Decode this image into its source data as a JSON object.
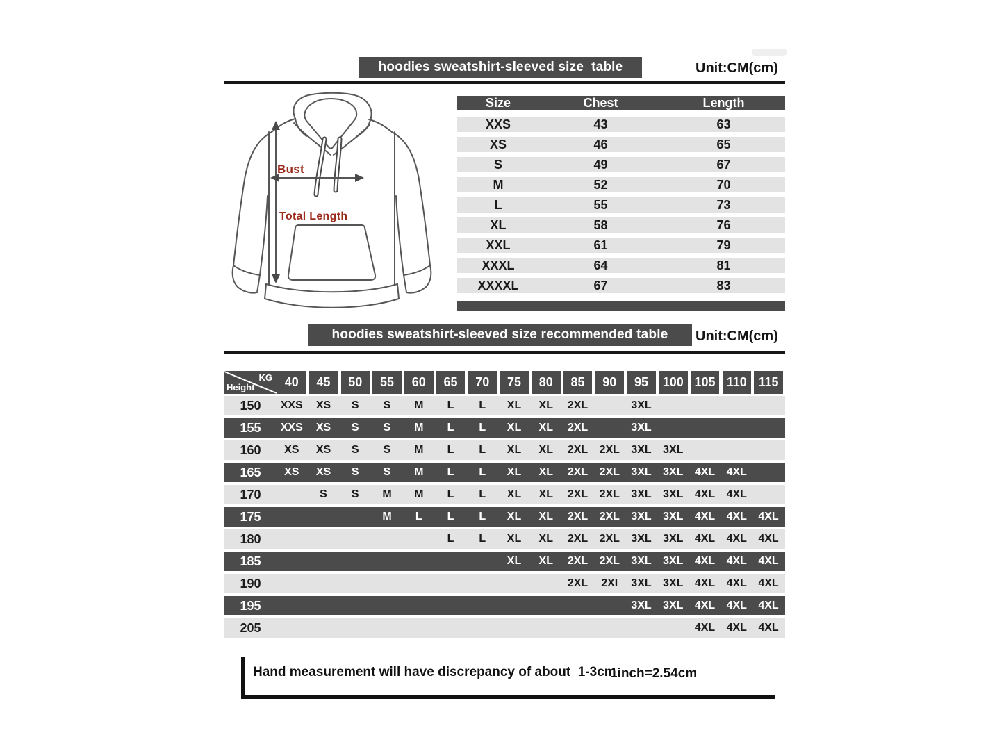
{
  "colors": {
    "dark_bar": "#4b4b4b",
    "light_row": "#e3e3e3",
    "text": "#1b1b1b",
    "red_label": "#9c2a1c"
  },
  "size_table": {
    "title": "hoodies sweatshirt-sleeved size  table",
    "unit": "Unit:CM(cm)",
    "columns": [
      "Size",
      "Chest",
      "Length"
    ],
    "rows": [
      {
        "size": "XXS",
        "chest": "43",
        "length": "63"
      },
      {
        "size": "XS",
        "chest": "46",
        "length": "65"
      },
      {
        "size": "S",
        "chest": "49",
        "length": "67"
      },
      {
        "size": "M",
        "chest": "52",
        "length": "70"
      },
      {
        "size": "L",
        "chest": "55",
        "length": "73"
      },
      {
        "size": "XL",
        "chest": "58",
        "length": "76"
      },
      {
        "size": "XXL",
        "chest": "61",
        "length": "79"
      },
      {
        "size": "XXXL",
        "chest": "64",
        "length": "81"
      },
      {
        "size": "XXXXL",
        "chest": "67",
        "length": "83"
      }
    ]
  },
  "diagram": {
    "bust_label": "Bust",
    "total_length_label": "Total Length"
  },
  "recommended_table": {
    "title": "hoodies sweatshirt-sleeved size recommended table",
    "unit": "Unit:CM(cm)",
    "corner_top_right": "KG",
    "corner_bottom_left": "Height",
    "weight_columns": [
      "40",
      "45",
      "50",
      "55",
      "60",
      "65",
      "70",
      "75",
      "80",
      "85",
      "90",
      "95",
      "100",
      "105",
      "110",
      "115"
    ],
    "rows": [
      {
        "height": "150",
        "cells": [
          "XXS",
          "XS",
          "S",
          "S",
          "M",
          "L",
          "L",
          "XL",
          "XL",
          "2XL",
          "",
          "3XL",
          "",
          "",
          "",
          ""
        ]
      },
      {
        "height": "155",
        "cells": [
          "XXS",
          "XS",
          "S",
          "S",
          "M",
          "L",
          "L",
          "XL",
          "XL",
          "2XL",
          "",
          "3XL",
          "",
          "",
          "",
          ""
        ]
      },
      {
        "height": "160",
        "cells": [
          "XS",
          "XS",
          "S",
          "S",
          "M",
          "L",
          "L",
          "XL",
          "XL",
          "2XL",
          "2XL",
          "3XL",
          "3XL",
          "",
          "",
          ""
        ]
      },
      {
        "height": "165",
        "cells": [
          "XS",
          "XS",
          "S",
          "S",
          "M",
          "L",
          "L",
          "XL",
          "XL",
          "2XL",
          "2XL",
          "3XL",
          "3XL",
          "4XL",
          "4XL",
          ""
        ]
      },
      {
        "height": "170",
        "cells": [
          "",
          "S",
          "S",
          "M",
          "M",
          "L",
          "L",
          "XL",
          "XL",
          "2XL",
          "2XL",
          "3XL",
          "3XL",
          "4XL",
          "4XL",
          ""
        ]
      },
      {
        "height": "175",
        "cells": [
          "",
          "",
          "",
          "M",
          "L",
          "L",
          "L",
          "XL",
          "XL",
          "2XL",
          "2XL",
          "3XL",
          "3XL",
          "4XL",
          "4XL",
          "4XL"
        ]
      },
      {
        "height": "180",
        "cells": [
          "",
          "",
          "",
          "",
          "",
          "L",
          "L",
          "XL",
          "XL",
          "2XL",
          "2XL",
          "3XL",
          "3XL",
          "4XL",
          "4XL",
          "4XL"
        ]
      },
      {
        "height": "185",
        "cells": [
          "",
          "",
          "",
          "",
          "",
          "",
          "",
          "XL",
          "XL",
          "2XL",
          "2XL",
          "3XL",
          "3XL",
          "4XL",
          "4XL",
          "4XL"
        ]
      },
      {
        "height": "190",
        "cells": [
          "",
          "",
          "",
          "",
          "",
          "",
          "",
          "",
          "",
          "2XL",
          "2XI",
          "3XL",
          "3XL",
          "4XL",
          "4XL",
          "4XL"
        ]
      },
      {
        "height": "195",
        "cells": [
          "",
          "",
          "",
          "",
          "",
          "",
          "",
          "",
          "",
          "",
          "",
          "3XL",
          "3XL",
          "4XL",
          "4XL",
          "4XL"
        ]
      },
      {
        "height": "205",
        "cells": [
          "",
          "",
          "",
          "",
          "",
          "",
          "",
          "",
          "",
          "",
          "",
          "",
          "",
          "4XL",
          "4XL",
          "4XL"
        ]
      }
    ]
  },
  "footer": {
    "note": "Hand measurement will have discrepancy of about  1-3cm",
    "conversion": "1inch=2.54cm"
  }
}
